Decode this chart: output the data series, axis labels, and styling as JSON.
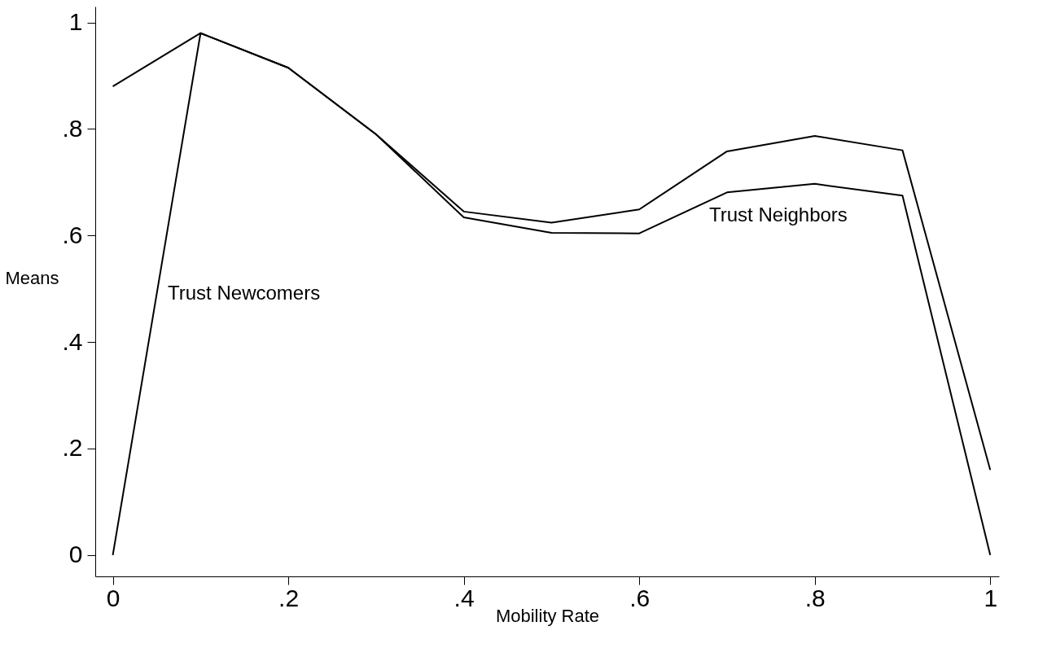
{
  "chart_data": {
    "type": "line",
    "xlabel": "Mobility Rate",
    "ylabel": "Means",
    "x": [
      0,
      0.1,
      0.2,
      0.3,
      0.4,
      0.5,
      0.6,
      0.7,
      0.8,
      0.9,
      1
    ],
    "series": [
      {
        "color": "#000000",
        "values": [
          0.88,
          0.98,
          0.915,
          0.79,
          0.645,
          0.624,
          0.649,
          0.758,
          0.787,
          0.76,
          0.16
        ]
      },
      {
        "color": "#000000",
        "values": [
          0,
          0.98,
          0.915,
          0.79,
          0.634,
          0.605,
          0.604,
          0.681,
          0.697,
          0.675,
          0
        ]
      }
    ],
    "annotations": [
      "Trust Newcomers",
      "Trust Neighbors"
    ],
    "xlim": [
      -0.02,
      1.01
    ],
    "ylim": [
      -0.04,
      1.03
    ],
    "xticks": [
      0,
      {
        "value": 0.2,
        "label": ".2"
      },
      {
        "value": 0.4,
        "label": ".4"
      },
      {
        "value": 0.6,
        "label": ".6"
      },
      {
        "value": 0.8,
        "label": ".8"
      },
      1
    ],
    "yticks": [
      0,
      {
        "value": 0.2,
        "label": ".2"
      },
      {
        "value": 0.4,
        "label": ".4"
      },
      {
        "value": 0.6,
        "label": ".6"
      },
      {
        "value": 0.8,
        "label": ".8"
      },
      1
    ],
    "grid": false,
    "marker": "none",
    "line_style": "solid"
  }
}
